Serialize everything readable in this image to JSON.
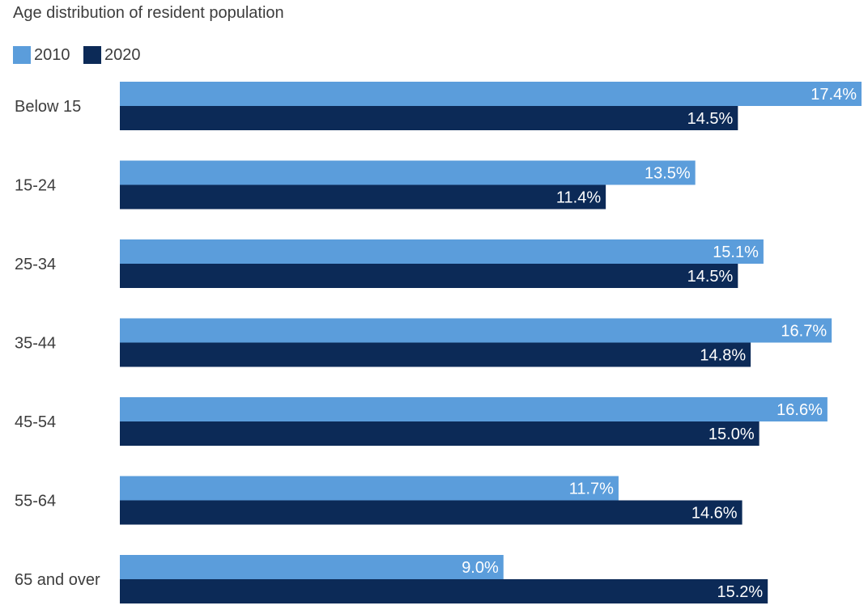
{
  "chart_data": {
    "type": "bar",
    "orientation": "horizontal",
    "title": "Age distribution of resident population",
    "categories": [
      "Below 15",
      "15-24",
      "25-34",
      "35-44",
      "45-54",
      "55-64",
      "65 and over"
    ],
    "series": [
      {
        "name": "2010",
        "color": "#5b9ddb",
        "values": [
          17.4,
          13.5,
          15.1,
          16.7,
          16.6,
          11.7,
          9.0
        ],
        "labels": [
          "17.4%",
          "13.5%",
          "15.1%",
          "16.7%",
          "16.6%",
          "11.7%",
          "9.0%"
        ]
      },
      {
        "name": "2020",
        "color": "#0c2a57",
        "values": [
          14.5,
          11.4,
          14.5,
          14.8,
          15.0,
          14.6,
          15.2
        ],
        "labels": [
          "14.5%",
          "11.4%",
          "14.5%",
          "14.8%",
          "15.0%",
          "14.6%",
          "15.2%"
        ]
      }
    ],
    "xlim": [
      0,
      17.4
    ],
    "grid": false,
    "legend_position": "top-left"
  }
}
